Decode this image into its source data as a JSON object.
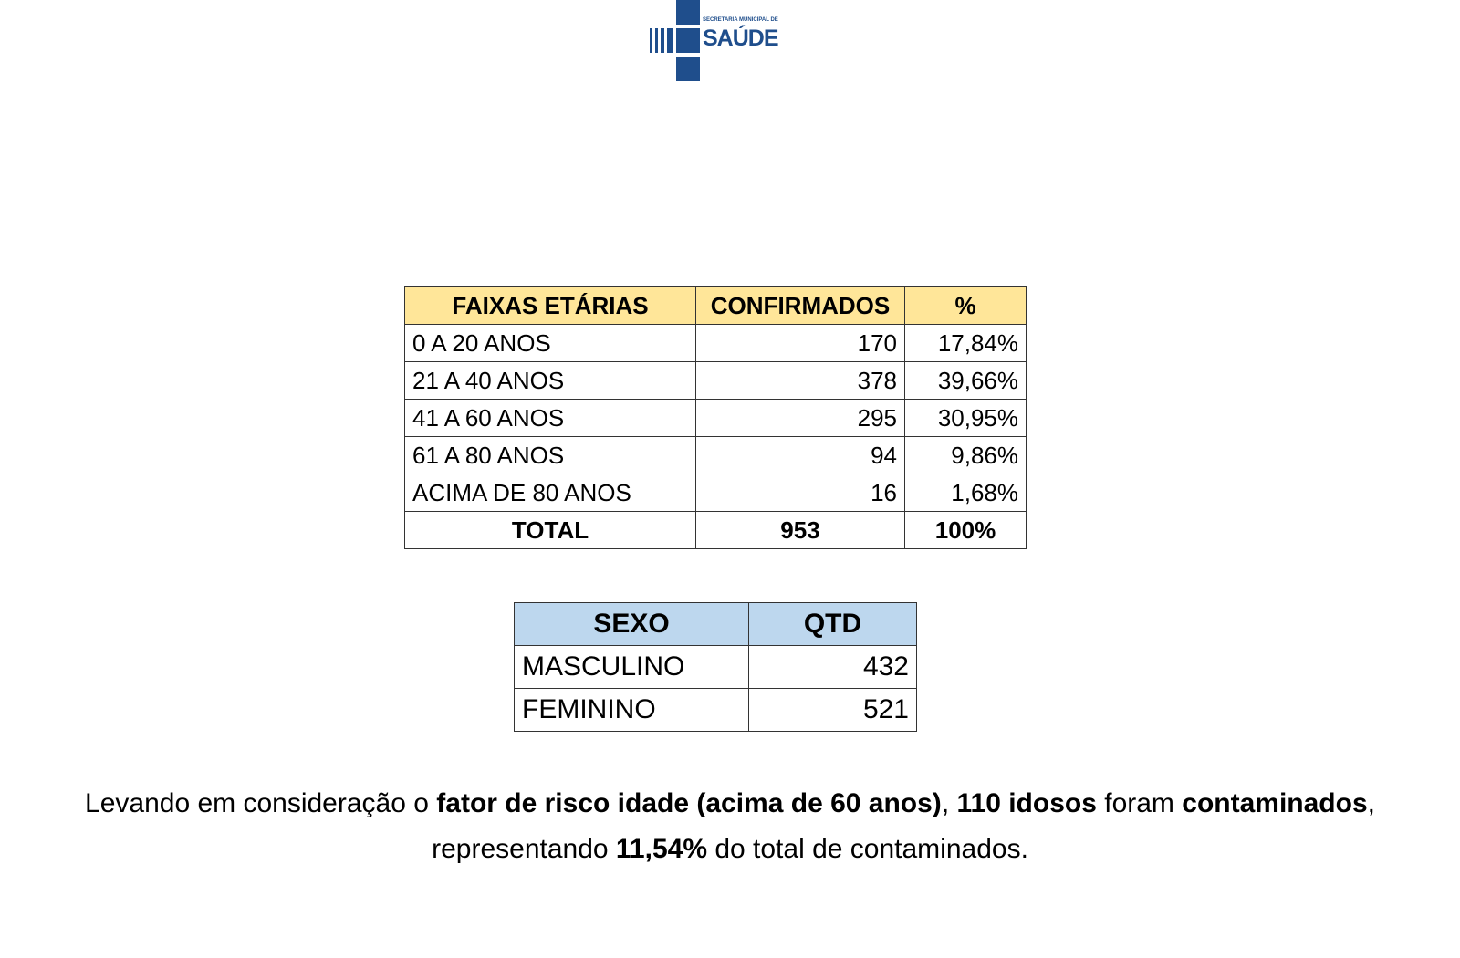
{
  "logo": {
    "small_text": "SECRETARIA MUNICIPAL DE",
    "big_text": "SAÚDE",
    "color": "#1f4e8c"
  },
  "age_table": {
    "headers": [
      "FAIXAS ETÁRIAS",
      "CONFIRMADOS",
      "%"
    ],
    "rows": [
      [
        "0 A 20 ANOS",
        "170",
        "17,84%"
      ],
      [
        "21 A 40 ANOS",
        "378",
        "39,66%"
      ],
      [
        "41 A 60 ANOS",
        "295",
        "30,95%"
      ],
      [
        "61 A 80 ANOS",
        "94",
        "9,86%"
      ],
      [
        "ACIMA DE 80 ANOS",
        "16",
        "1,68%"
      ]
    ],
    "total": [
      "TOTAL",
      "953",
      "100%"
    ],
    "header_color": "#ffe699"
  },
  "sex_table": {
    "headers": [
      "SEXO",
      "QTD"
    ],
    "rows": [
      [
        "MASCULINO",
        "432"
      ],
      [
        "FEMININO",
        "521"
      ]
    ],
    "header_color": "#bdd7ee"
  },
  "summary": {
    "p1": "Levando em consideração o ",
    "b1": "fator de risco idade (acima de 60 anos)",
    "p2": ", ",
    "b2": "110 idosos",
    "p3": " foram ",
    "b3": "contaminados",
    "p4": ",",
    "p5": "representando ",
    "b4": "11,54%",
    "p6": " do total de contaminados."
  }
}
